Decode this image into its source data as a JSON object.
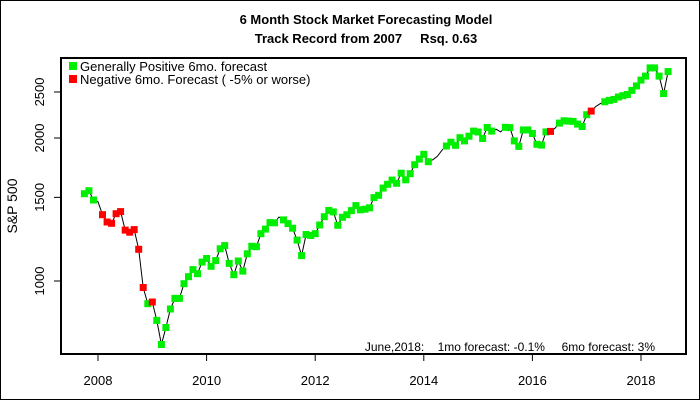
{
  "chart_data": {
    "type": "line",
    "title": "6 Month Stock Market Forecasting Model",
    "subtitle": "Track Record from 2007     Rsq. 0.63",
    "xlabel": "",
    "ylabel": "S&P 500",
    "y_scale": "log",
    "ylim": [
      720,
      2950
    ],
    "xlim": [
      2007.5,
      2018.75
    ],
    "x_ticks": [
      2008,
      2010,
      2012,
      2014,
      2016,
      2018
    ],
    "y_ticks": [
      1000,
      1500,
      2000,
      2500
    ],
    "grid": false,
    "legend_placement": "top-left",
    "legend": [
      {
        "label": "Generally Positive 6mo. forecast",
        "key": "P",
        "color": "#00ee00"
      },
      {
        "label": "Negative 6mo. Forecast ( -5% or worse)",
        "key": "N",
        "color": "#ff0000"
      }
    ],
    "line_color": "#000000",
    "annotation": "June,2018:    1mo forecast: -0.1%     6mo forecast: 3%",
    "start": "2007-09",
    "series_monthly": [
      [
        1527,
        "P"
      ],
      [
        1549,
        "P"
      ],
      [
        1481,
        "P"
      ],
      [
        1468,
        ""
      ],
      [
        1379,
        "N"
      ],
      [
        1331,
        "N"
      ],
      [
        1323,
        "N"
      ],
      [
        1386,
        "N"
      ],
      [
        1400,
        "N"
      ],
      [
        1280,
        "N"
      ],
      [
        1267,
        "N"
      ],
      [
        1283,
        "N"
      ],
      [
        1166,
        "N"
      ],
      [
        969,
        "N"
      ],
      [
        896,
        "P"
      ],
      [
        903,
        "N"
      ],
      [
        826,
        "P"
      ],
      [
        735,
        "P"
      ],
      [
        798,
        "P"
      ],
      [
        873,
        "P"
      ],
      [
        919,
        "P"
      ],
      [
        919,
        "P"
      ],
      [
        987,
        "P"
      ],
      [
        1021,
        "P"
      ],
      [
        1057,
        "P"
      ],
      [
        1036,
        "P"
      ],
      [
        1096,
        "P"
      ],
      [
        1115,
        "P"
      ],
      [
        1074,
        "P"
      ],
      [
        1104,
        "P"
      ],
      [
        1169,
        "P"
      ],
      [
        1187,
        "P"
      ],
      [
        1089,
        "P"
      ],
      [
        1031,
        "P"
      ],
      [
        1102,
        "P"
      ],
      [
        1049,
        "P"
      ],
      [
        1141,
        "P"
      ],
      [
        1183,
        "P"
      ],
      [
        1181,
        "P"
      ],
      [
        1258,
        "P"
      ],
      [
        1286,
        "P"
      ],
      [
        1327,
        "P"
      ],
      [
        1326,
        "P"
      ],
      [
        1364,
        ""
      ],
      [
        1345,
        "P"
      ],
      [
        1321,
        "P"
      ],
      [
        1292,
        "P"
      ],
      [
        1219,
        "P"
      ],
      [
        1131,
        "P"
      ],
      [
        1253,
        "P"
      ],
      [
        1247,
        "P"
      ],
      [
        1258,
        "P"
      ],
      [
        1312,
        "P"
      ],
      [
        1366,
        "P"
      ],
      [
        1408,
        "P"
      ],
      [
        1398,
        "P"
      ],
      [
        1310,
        "P"
      ],
      [
        1362,
        "P"
      ],
      [
        1379,
        "P"
      ],
      [
        1407,
        "P"
      ],
      [
        1441,
        "P"
      ],
      [
        1412,
        "P"
      ],
      [
        1416,
        "P"
      ],
      [
        1426,
        "P"
      ],
      [
        1498,
        "P"
      ],
      [
        1515,
        "P"
      ],
      [
        1569,
        "P"
      ],
      [
        1598,
        "P"
      ],
      [
        1631,
        "P"
      ],
      [
        1606,
        "P"
      ],
      [
        1686,
        "P"
      ],
      [
        1633,
        "P"
      ],
      [
        1682,
        "P"
      ],
      [
        1757,
        "P"
      ],
      [
        1806,
        "P"
      ],
      [
        1848,
        "P"
      ],
      [
        1783,
        "P"
      ],
      [
        1800,
        ""
      ],
      [
        1830,
        ""
      ],
      [
        1884,
        ""
      ],
      [
        1924,
        "P"
      ],
      [
        1960,
        "P"
      ],
      [
        1931,
        "P"
      ],
      [
        2003,
        "P"
      ],
      [
        1972,
        "P"
      ],
      [
        2018,
        "P"
      ],
      [
        2068,
        "P"
      ],
      [
        2059,
        "P"
      ],
      [
        1995,
        "P"
      ],
      [
        2105,
        "P"
      ],
      [
        2068,
        "P"
      ],
      [
        2086,
        ""
      ],
      [
        2060,
        ""
      ],
      [
        2107,
        "P"
      ],
      [
        2104,
        "P"
      ],
      [
        1972,
        "P"
      ],
      [
        1920,
        "P"
      ],
      [
        2079,
        "P"
      ],
      [
        2080,
        "P"
      ],
      [
        2044,
        "P"
      ],
      [
        1940,
        "P"
      ],
      [
        1932,
        "P"
      ],
      [
        2060,
        "P"
      ],
      [
        2065,
        "N"
      ],
      [
        2097,
        ""
      ],
      [
        2150,
        "P"
      ],
      [
        2174,
        "P"
      ],
      [
        2171,
        "P"
      ],
      [
        2168,
        "P"
      ],
      [
        2140,
        "P"
      ],
      [
        2115,
        "P"
      ],
      [
        2239,
        "P"
      ],
      [
        2279,
        "N"
      ],
      [
        2330,
        ""
      ],
      [
        2363,
        ""
      ],
      [
        2384,
        "P"
      ],
      [
        2400,
        "P"
      ],
      [
        2412,
        "P"
      ],
      [
        2440,
        "P"
      ],
      [
        2455,
        "P"
      ],
      [
        2470,
        "P"
      ],
      [
        2519,
        "P"
      ],
      [
        2575,
        "P"
      ],
      [
        2648,
        "P"
      ],
      [
        2700,
        "P"
      ],
      [
        2810,
        "P"
      ],
      [
        2810,
        "P"
      ],
      [
        2700,
        "P"
      ],
      [
        2480,
        "P"
      ],
      [
        2760,
        "P"
      ]
    ]
  }
}
